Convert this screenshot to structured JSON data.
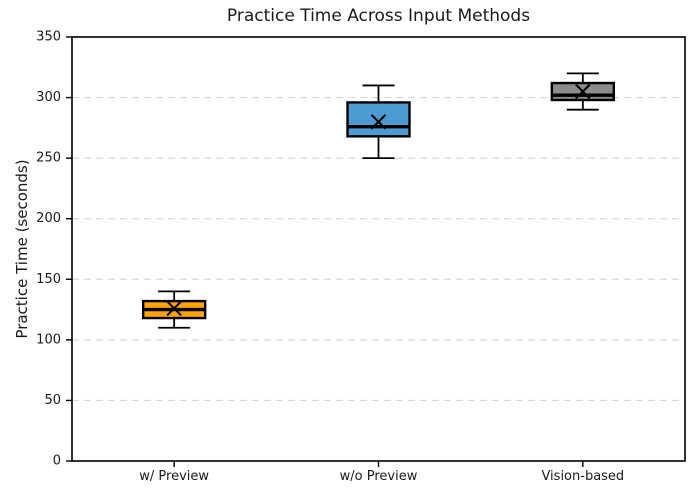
{
  "chart_data": {
    "type": "box",
    "title": "Practice Time Across Input Methods",
    "ylabel": "Practice Time (seconds)",
    "xlabel": "",
    "categories": [
      "w/ Preview",
      "w/o Preview",
      "Vision-based"
    ],
    "ylim": [
      0,
      350
    ],
    "yticks": [
      0,
      50,
      100,
      150,
      200,
      250,
      300,
      350
    ],
    "grid": "horizontal-dashed",
    "legend_position": "none",
    "mean_marker": "x",
    "series": [
      {
        "name": "w/ Preview",
        "color": "#FFA500",
        "min": 110,
        "q1": 118,
        "median": 125,
        "q3": 132,
        "max": 140,
        "mean": 126
      },
      {
        "name": "w/o Preview",
        "color": "#4C9BD3",
        "min": 250,
        "q1": 268,
        "median": 276,
        "q3": 296,
        "max": 310,
        "mean": 280
      },
      {
        "name": "Vision-based",
        "color": "#8C8C8C",
        "min": 290,
        "q1": 298,
        "median": 302,
        "q3": 312,
        "max": 320,
        "mean": 305
      }
    ],
    "colors": {
      "box_edge": "#000000",
      "median_line": "#000000",
      "mean_marker": "#000000",
      "whisker": "#000000",
      "grid": "#d9d9d9",
      "axis": "#000000",
      "background": "#ffffff",
      "text": "#1a1a1a"
    }
  }
}
